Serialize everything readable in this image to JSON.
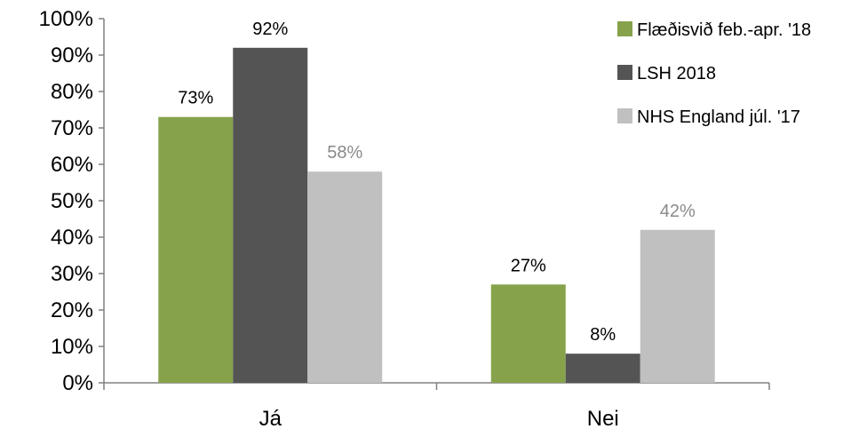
{
  "chart_data": {
    "type": "bar",
    "categories": [
      "Já",
      "Nei"
    ],
    "series": [
      {
        "name": "Flæðisvið feb.-apr. '18",
        "values": [
          73,
          27
        ],
        "labels": [
          "73%",
          "27%"
        ],
        "color": "#86a34b",
        "label_color": "#000000"
      },
      {
        "name": "LSH 2018",
        "values": [
          92,
          8
        ],
        "labels": [
          "92%",
          "8%"
        ],
        "color": "#545454",
        "label_color": "#000000"
      },
      {
        "name": "NHS England júl. '17",
        "values": [
          58,
          42
        ],
        "labels": [
          "58%",
          "42%"
        ],
        "color": "#c0c0c0",
        "label_color": "#8a8a8a"
      }
    ],
    "ylim": [
      0,
      100
    ],
    "y_ticks": [
      "0%",
      "10%",
      "20%",
      "30%",
      "40%",
      "50%",
      "60%",
      "70%",
      "80%",
      "90%",
      "100%"
    ],
    "grid": false,
    "legend_position": "top-right",
    "axis_color": "#808080"
  }
}
